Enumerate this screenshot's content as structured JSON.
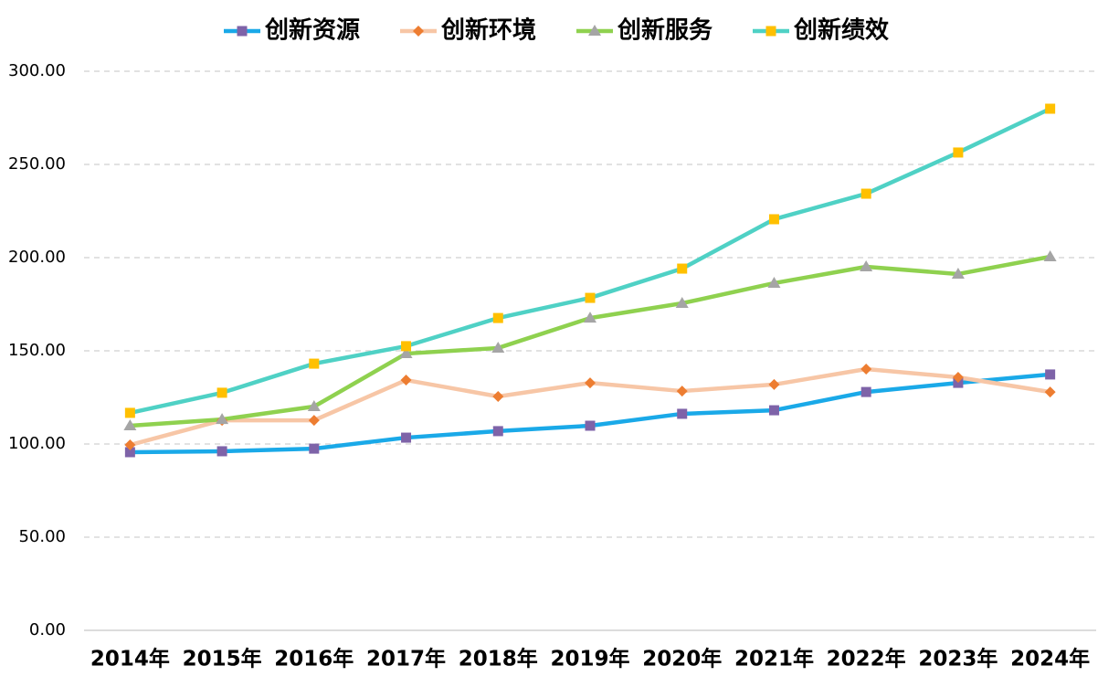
{
  "chart_data": {
    "type": "line",
    "categories": [
      "2014年",
      "2015年",
      "2016年",
      "2017年",
      "2018年",
      "2019年",
      "2020年",
      "2021年",
      "2022年",
      "2023年",
      "2024年"
    ],
    "series": [
      {
        "name": "创新资源",
        "color": "#1aa9e8",
        "marker": "square",
        "marker_color": "#7e63a8",
        "values": [
          95.6,
          96.1,
          97.5,
          103.4,
          106.9,
          109.8,
          116.2,
          118.1,
          127.9,
          132.8,
          137.3
        ]
      },
      {
        "name": "创新环境",
        "color": "#f7c6a6",
        "marker": "diamond",
        "marker_color": "#ed7d31",
        "values": [
          99.5,
          112.7,
          112.7,
          134.3,
          125.5,
          132.8,
          128.4,
          131.9,
          140.2,
          135.8,
          127.9
        ]
      },
      {
        "name": "创新服务",
        "color": "#8fd14f",
        "marker": "triangle",
        "marker_color": "#a5a5a5",
        "values": [
          109.8,
          113.2,
          120.1,
          148.5,
          151.5,
          167.6,
          175.5,
          186.3,
          195.1,
          191.2,
          200.5
        ]
      },
      {
        "name": "创新绩效",
        "color": "#4fd1c5",
        "marker": "square",
        "marker_color": "#ffc000",
        "values": [
          116.7,
          127.5,
          143.1,
          152.5,
          167.6,
          178.4,
          194.1,
          220.6,
          234.3,
          256.4,
          279.9
        ]
      }
    ],
    "ylim": [
      0,
      300
    ],
    "yticks": [
      {
        "value": 0,
        "label": "0.00"
      },
      {
        "value": 50,
        "label": "50.00"
      },
      {
        "value": 100,
        "label": "100.00"
      },
      {
        "value": 150,
        "label": "150.00"
      },
      {
        "value": 200,
        "label": "200.00"
      },
      {
        "value": 250,
        "label": "250.00"
      },
      {
        "value": 300,
        "label": "300.00"
      }
    ],
    "grid": true,
    "legend": "top"
  }
}
